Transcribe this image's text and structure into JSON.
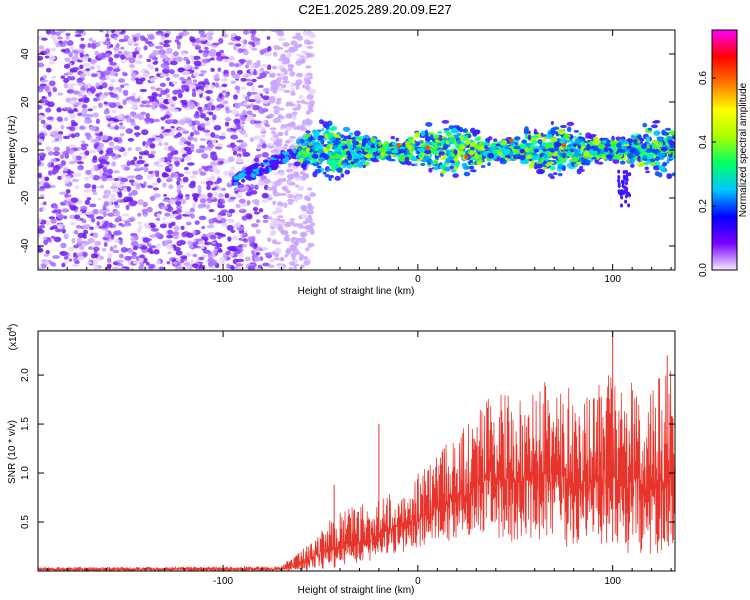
{
  "title": "C2E1.2025.289.20.09.E27",
  "chart_data": [
    {
      "type": "heatmap",
      "xlabel": "Height of straight line (km)",
      "ylabel": "Frequency (Hz)",
      "xlim": [
        -195,
        132
      ],
      "ylim": [
        -50,
        50
      ],
      "xticks": [
        -100,
        0,
        100
      ],
      "yticks": [
        -40,
        -20,
        0,
        20,
        40
      ],
      "xtick_labels": [
        "-100",
        "0",
        "100"
      ],
      "ytick_labels": [
        "-40",
        "-20",
        "0",
        "20",
        "40"
      ],
      "noise_region_x": [
        -195,
        -62
      ],
      "signal_band_x": [
        -62,
        132
      ],
      "signal_center_hz": 0,
      "signal_halfwidth_hz": 10,
      "colorbar": {
        "label": "Normalized spectral amplitude",
        "range": [
          0.0,
          0.75
        ],
        "ticks": [
          0.0,
          0.2,
          0.4,
          0.6
        ],
        "tick_labels": [
          "0.0",
          "0.2",
          "0.4",
          "0.6"
        ],
        "colors": [
          "#f7eaff",
          "#7a00ff",
          "#0000ff",
          "#00c8ff",
          "#00ff66",
          "#aaff00",
          "#ffff00",
          "#ff7700",
          "#ff0000",
          "#ff00ff"
        ]
      }
    },
    {
      "type": "line",
      "xlabel": "Height of straight line (km)",
      "ylabel": "SNR (10 * v/v)",
      "y_scale_label": "(x10",
      "y_scale_exp": "4",
      "xlim": [
        -195,
        132
      ],
      "ylim": [
        0,
        2.45
      ],
      "xticks": [
        -100,
        0,
        100
      ],
      "yticks": [
        0.5,
        1.0,
        1.5,
        2.0
      ],
      "xtick_labels": [
        "-100",
        "0",
        "100"
      ],
      "ytick_labels": [
        "0.5",
        "1.0",
        "1.5",
        "2.0"
      ],
      "line_color": "#e8352c",
      "envelope": {
        "x": [
          -195,
          -70,
          -55,
          -45,
          -35,
          -25,
          -15,
          -5,
          5,
          15,
          25,
          35,
          45,
          55,
          65,
          75,
          85,
          95,
          105,
          115,
          125,
          132
        ],
        "max": [
          0.04,
          0.05,
          0.3,
          0.55,
          0.65,
          0.7,
          0.8,
          0.9,
          1.1,
          1.3,
          1.5,
          1.8,
          1.8,
          1.9,
          2.0,
          1.9,
          1.9,
          2.1,
          1.9,
          2.0,
          2.0,
          2.1
        ],
        "min": [
          0.0,
          0.0,
          0.0,
          0.02,
          0.05,
          0.1,
          0.15,
          0.2,
          0.25,
          0.3,
          0.35,
          0.4,
          0.3,
          0.3,
          0.3,
          0.25,
          0.2,
          0.2,
          0.2,
          0.1,
          0.2,
          0.3
        ]
      },
      "spikes": [
        {
          "x": -43,
          "y": 0.88
        },
        {
          "x": -20,
          "y": 1.5
        },
        {
          "x": 100,
          "y": 2.45
        },
        {
          "x": 128,
          "y": 2.2
        }
      ]
    }
  ]
}
